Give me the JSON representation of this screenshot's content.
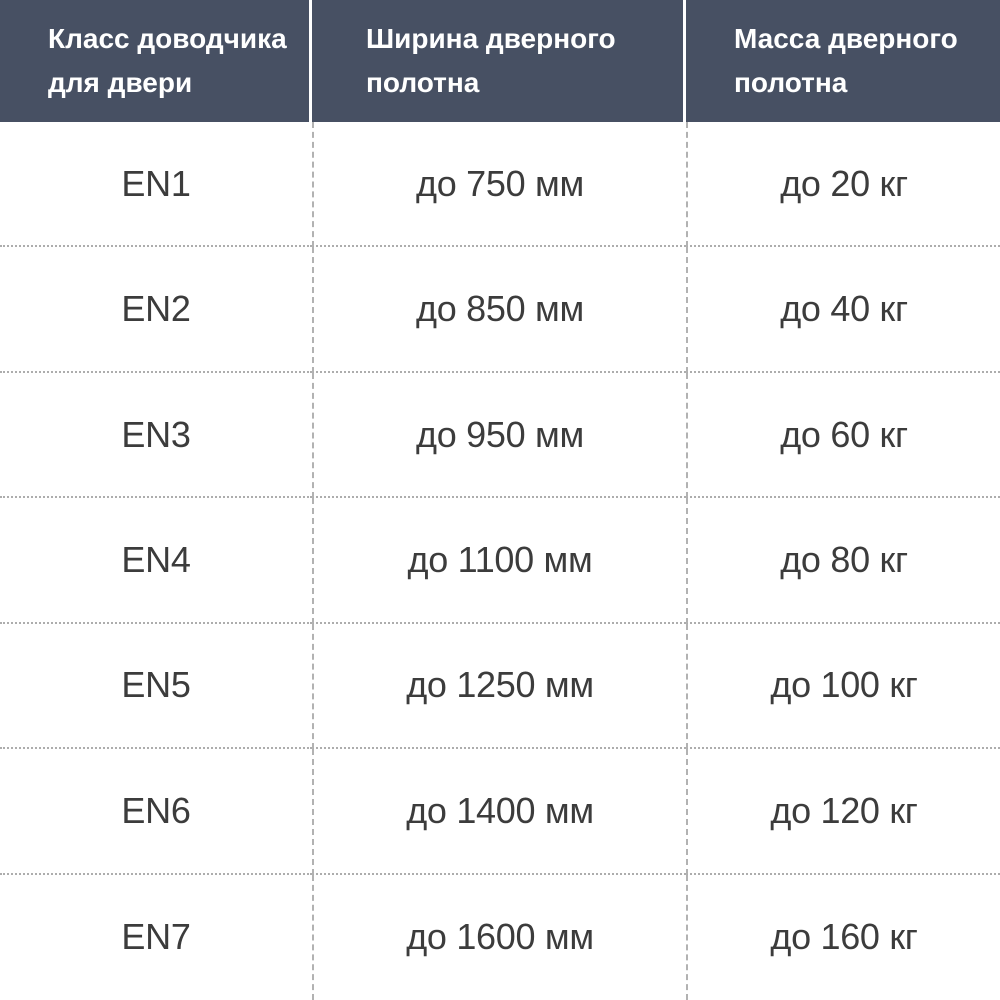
{
  "colors": {
    "header_background": "#475063",
    "header_text": "#FFFFFF",
    "body_text": "#3C3C3C",
    "grid_line": "#B2B2B2",
    "page_background": "#FFFFFF"
  },
  "chart_data": {
    "type": "table",
    "title": "",
    "columns": [
      "Класс доводчика для двери",
      "Ширина дверного полотна",
      "Масса дверного полотна"
    ],
    "rows": [
      [
        "EN1",
        "до 750 мм",
        "до 20 кг"
      ],
      [
        "EN2",
        "до 850 мм",
        "до 40 кг"
      ],
      [
        "EN3",
        "до 950 мм",
        "до 60 кг"
      ],
      [
        "EN4",
        "до 1100 мм",
        "до 80 кг"
      ],
      [
        "EN5",
        "до 1250 мм",
        "до 100 кг"
      ],
      [
        "EN6",
        "до 1400 мм",
        "до 120 кг"
      ],
      [
        "EN7",
        "до 1600 мм",
        "до 160 кг"
      ]
    ],
    "layout": {
      "header_alignment": "left",
      "body_alignment": "center",
      "row_separator": "dotted",
      "column_separator": "dashed"
    }
  }
}
